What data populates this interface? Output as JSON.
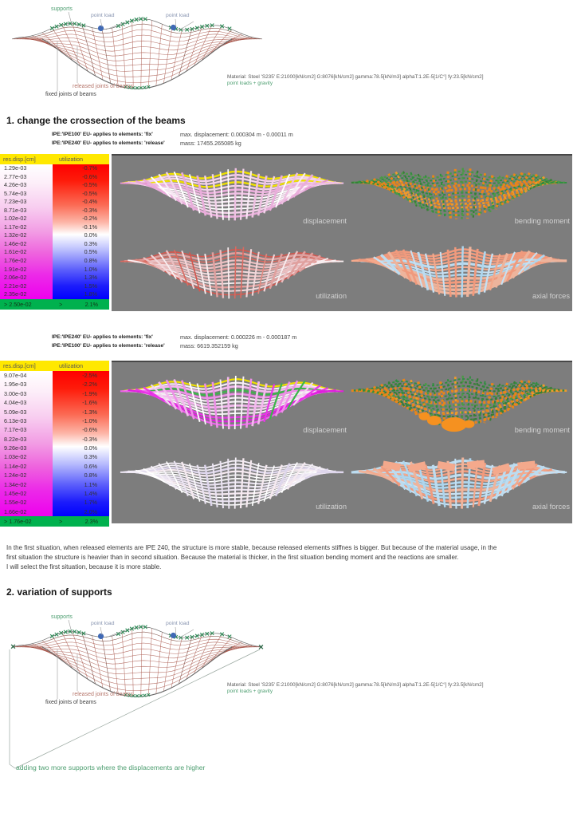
{
  "diagram_labels": {
    "supports": "supports",
    "point_load_1": "point load",
    "point_load_2": "point load",
    "released": "released joints of beams",
    "fixed": "fixed joints of beams"
  },
  "material": {
    "line1": "Material: Steel 'S235' E:21000[kN/cm2] G:8076[kN/cm2] gamma:78.5[kN/m3] alphaT:1.2E-5[1/C°] fy:23.5[kN/cm2]",
    "line2": "point loads + gravity"
  },
  "headings": {
    "h1": "1. change the crossection of the beams",
    "h2": "2. variation of supports"
  },
  "panel_labels": {
    "displacement": "displacement",
    "bending": "bending moment",
    "utilization": "utilization",
    "axial": "axial forces"
  },
  "section1": {
    "ipe_fix": "IPE:'IPE100' EU- applies to elements: 'fix'",
    "ipe_release": "IPE:'IPE240' EU- applies to elements: 'release'",
    "max_disp": "max. displacement: 0.000304 m - 0.00011 m",
    "mass": "mass: 17455.265085 kg",
    "legend": {
      "headers": [
        "res.disp.[cm]",
        "utilization"
      ],
      "rows": [
        [
          "1.29e-03",
          "-0.7%"
        ],
        [
          "2.77e-03",
          "-0.6%"
        ],
        [
          "4.26e-03",
          "-0.5%"
        ],
        [
          "5.74e-03",
          "-0.5%"
        ],
        [
          "7.23e-03",
          "-0.4%"
        ],
        [
          "8.71e-03",
          "-0.3%"
        ],
        [
          "1.02e-02",
          "-0.2%"
        ],
        [
          "1.17e-02",
          "-0.1%"
        ],
        [
          "1.32e-02",
          "0.0%"
        ],
        [
          "1.46e-02",
          "0.3%"
        ],
        [
          "1.61e-02",
          "0.5%"
        ],
        [
          "1.76e-02",
          "0.8%"
        ],
        [
          "1.91e-02",
          "1.0%"
        ],
        [
          "2.06e-02",
          "1.3%"
        ],
        [
          "2.21e-02",
          "1.5%"
        ],
        [
          "2.35e-02",
          "1.8%"
        ]
      ],
      "overflow": [
        "> 2.50e-02",
        ">",
        "2.1%"
      ]
    }
  },
  "section2": {
    "ipe_fix": "IPE:'IPE240' EU- applies to elements: 'fix'",
    "ipe_release": "IPE:'IPE100' EU- applies to elements: 'release'",
    "max_disp": "max. displacement: 0.000226 m - 0.000187 m",
    "mass": "mass: 6619.352159 kg",
    "legend": {
      "headers": [
        "res.disp.[cm]",
        "utilization"
      ],
      "rows": [
        [
          "9.07e-04",
          "-2.5%"
        ],
        [
          "1.95e-03",
          "-2.2%"
        ],
        [
          "3.00e-03",
          "-1.9%"
        ],
        [
          "4.04e-03",
          "-1.6%"
        ],
        [
          "5.09e-03",
          "-1.3%"
        ],
        [
          "6.13e-03",
          "-1.0%"
        ],
        [
          "7.17e-03",
          "-0.6%"
        ],
        [
          "8.22e-03",
          "-0.3%"
        ],
        [
          "9.26e-03",
          "0.0%"
        ],
        [
          "1.03e-02",
          "0.3%"
        ],
        [
          "1.14e-02",
          "0.6%"
        ],
        [
          "1.24e-02",
          "0.8%"
        ],
        [
          "1.34e-02",
          "1.1%"
        ],
        [
          "1.45e-02",
          "1.4%"
        ],
        [
          "1.55e-02",
          "1.7%"
        ],
        [
          "1.66e-02",
          "2.0%"
        ]
      ],
      "overflow": [
        "> 1.76e-02",
        ">",
        "2.3%"
      ]
    }
  },
  "conclusion": [
    "In the first situation, when released elements are IPE 240, the structure is more stable, because released elements stiffnes is bigger. But because of the material usage, in the",
    "first situation the structure is heavier than in second situation. Because the material is thicker, in the first situation bending moment and the reactions are smaller.",
    "I will select the first situation, because it is more stable."
  ],
  "annotation": "adding two more supports where the displacements are higher",
  "colors": {
    "wire": "#a8574b",
    "outline": "#606060",
    "support": "#2e8b57",
    "load": "#3f69b5",
    "leader": "#9b9b9b",
    "yellow": "#efe000",
    "green2": "#3cb54a",
    "panel_bg": "#7d7d7d",
    "legend_yellow": "#ffe800",
    "legend_green": "#00b14e",
    "disp1": [
      "#ffffff",
      "#f8e8f4",
      "#f3d2ea",
      "#eec0e2",
      "#e9addb"
    ],
    "disp1edge": [
      "#e9a3d8",
      "#efc0e5",
      "#e393cf"
    ],
    "util1": [
      "#ffffff",
      "#f8eef0",
      "#f2d7da",
      "#eabfc1",
      "#e0a09e"
    ],
    "util1red": [
      "#d96a60",
      "#d4574e",
      "#e08a80"
    ],
    "bendG": [
      "#2f8f3e",
      "#377f37",
      "#4a9a45"
    ],
    "bendO": [
      "#f59120",
      "#ef9a2b",
      "#e8851a"
    ],
    "axialS": [
      "#f4a98c",
      "#f09a7d",
      "#eeb49c"
    ],
    "axialB": [
      "#c6e0f2",
      "#aed6ee",
      "#bcdcf0"
    ],
    "disp2mag": [
      "#e935e8",
      "#e01fdf",
      "#ef5fee"
    ],
    "disp2": [
      "#ffffff",
      "#f7eef6",
      "#f0d9ee",
      "#ee8fe8",
      "#f3b9ee"
    ],
    "util2": [
      "#ffffff",
      "#f4eff7",
      "#ebe4f2",
      "#f6eaf0",
      "#ded6ec"
    ]
  }
}
